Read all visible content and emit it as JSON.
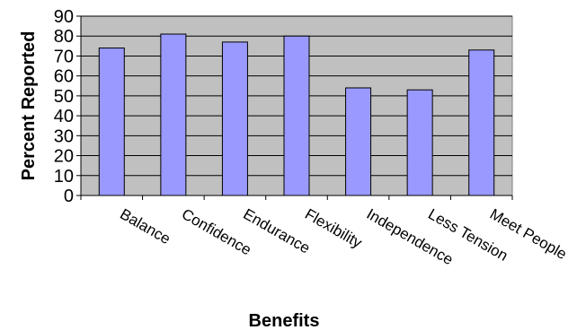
{
  "chart_data": {
    "type": "bar",
    "title": "",
    "xlabel": "Benefits",
    "ylabel": "Percent Reported",
    "categories": [
      "Balance",
      "Confidence",
      "Endurance",
      "Flexibility",
      "Independence",
      "Less Tension",
      "Meet People"
    ],
    "values": [
      74,
      81,
      77,
      80,
      54,
      53,
      73
    ],
    "ylim": [
      0,
      90
    ],
    "yticks": [
      "0",
      "10",
      "20",
      "30",
      "40",
      "50",
      "60",
      "70",
      "80",
      "90"
    ],
    "grid": true,
    "legend": "none",
    "colors": {
      "bar_fill": "#9999ff",
      "bar_stroke": "#000000",
      "plot_background": "#c0c0c0",
      "gridline": "#000000"
    }
  }
}
